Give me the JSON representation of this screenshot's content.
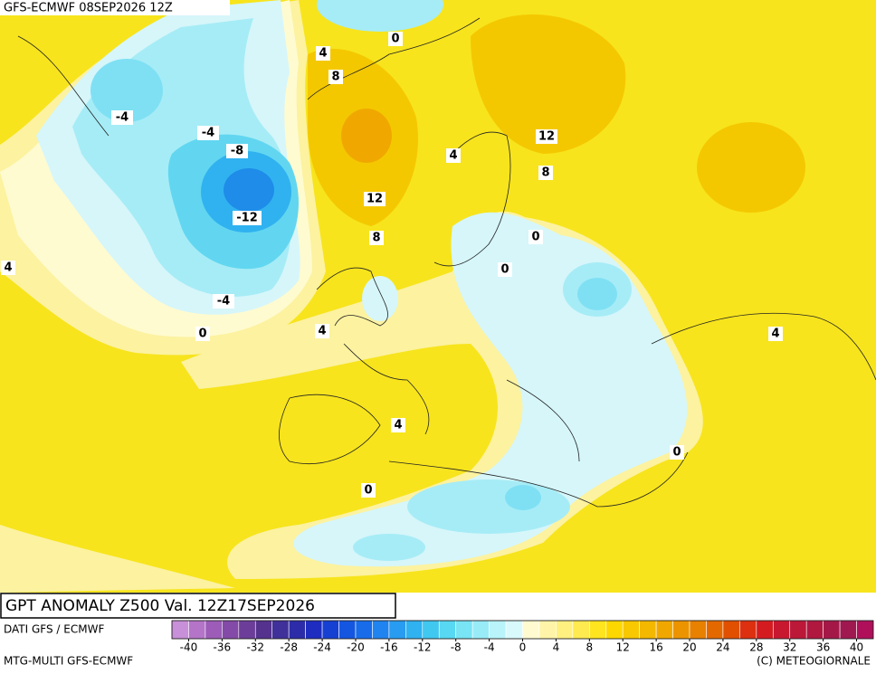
{
  "header": {
    "title": "GFS-ECMWF 08SEP2026 12Z"
  },
  "contour_labels": [
    "0",
    "4",
    "8",
    "-4",
    "-4",
    "-8",
    "-12",
    "12",
    "8",
    "4",
    "12",
    "8",
    "0",
    "0",
    "4",
    "-4",
    "0",
    "4",
    "4",
    "4",
    "0",
    "0"
  ],
  "footer": {
    "title": "GPT ANOMALY Z500 Val. 12Z17SEP2026",
    "source": "DATI GFS / ECMWF",
    "model": "MTG-MULTI GFS-ECMWF",
    "copyright": "(C) METEOGIORNALE"
  },
  "colorbar": {
    "min": -42,
    "max": 42,
    "colors": [
      "#c890d8",
      "#b474c8",
      "#9c5cb8",
      "#844aa8",
      "#6c3e9a",
      "#54328e",
      "#40309a",
      "#2c2ca8",
      "#1e2cc0",
      "#1640d2",
      "#1456e0",
      "#186cea",
      "#2084f0",
      "#289cf0",
      "#30b2f0",
      "#40c8f0",
      "#58d8f2",
      "#78e4f4",
      "#98ecf8",
      "#b8f4fa",
      "#d8fafc",
      "#fffad0",
      "#fff4a8",
      "#fff080",
      "#ffea50",
      "#ffe420",
      "#fdd800",
      "#f8c800",
      "#f4b800",
      "#f0a800",
      "#ec9400",
      "#e88000",
      "#e46800",
      "#e05000",
      "#dc3010",
      "#d41c20",
      "#c81830",
      "#bc1838",
      "#b01840",
      "#a41848",
      "#a01850",
      "#b0105a"
    ],
    "ticks": [
      -40,
      -36,
      -32,
      -28,
      -24,
      -20,
      -16,
      -12,
      -8,
      -4,
      0,
      4,
      8,
      12,
      16,
      20,
      24,
      28,
      32,
      36,
      40
    ]
  }
}
